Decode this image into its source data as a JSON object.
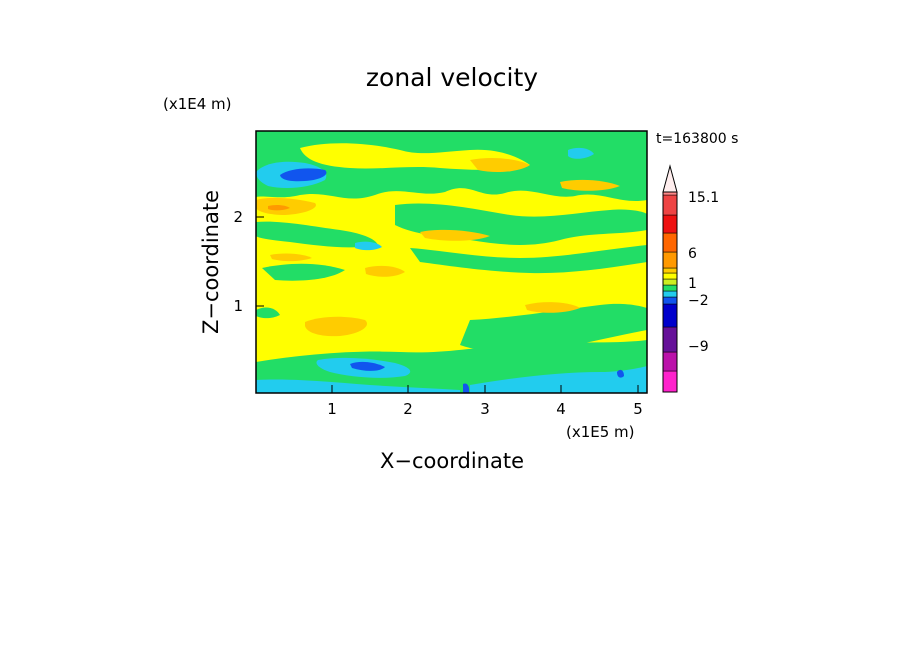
{
  "chart_data": {
    "type": "heatmap",
    "title": "zonal velocity",
    "time_label": "t=163800 s",
    "xlabel": "X−coordinate",
    "ylabel": "Z−coordinate",
    "x_scale_label": "(x1E5 m)",
    "y_scale_label": "(x1E4 m)",
    "xlim": [
      0,
      5.12
    ],
    "ylim": [
      0,
      2.95
    ],
    "x_ticks": [
      "1",
      "2",
      "3",
      "4",
      "5"
    ],
    "y_ticks": [
      "1",
      "2"
    ],
    "colorbar": {
      "labels": [
        "15.1",
        "6",
        "1",
        "−2",
        "−9"
      ],
      "colors": [
        "#ff22cc",
        "#bb11aa",
        "#661199",
        "#0000cc",
        "#1155ee",
        "#22ccee",
        "#22dd66",
        "#ccee22",
        "#ffff00",
        "#ffcc00",
        "#ff9900",
        "#ff6600",
        "#ee1111",
        "#ee4444",
        "#ff8888",
        "#ffbbbb"
      ]
    },
    "regions": [
      {
        "level": "green",
        "x0": 0.0,
        "x1": 5.12,
        "z0": 0.0,
        "z1": 0.45
      },
      {
        "level": "cyan",
        "x0": 2.9,
        "x1": 4.8,
        "z0": 0.05,
        "z1": 0.22
      },
      {
        "level": "cyan",
        "x0": 0.0,
        "x1": 2.4,
        "z0": 0.0,
        "z1": 0.1
      },
      {
        "level": "cyan",
        "x0": 0.8,
        "x1": 2.1,
        "z0": 0.2,
        "z1": 0.4
      },
      {
        "level": "blue",
        "x0": 1.3,
        "x1": 1.7,
        "z0": 0.23,
        "z1": 0.32
      },
      {
        "level": "green",
        "x0": 0.0,
        "x1": 5.12,
        "z0": 2.55,
        "z1": 2.95
      },
      {
        "level": "cyan",
        "x0": 0.0,
        "x1": 0.9,
        "z0": 2.3,
        "z1": 2.65
      },
      {
        "level": "blue",
        "x0": 0.25,
        "x1": 0.8,
        "z0": 2.4,
        "z1": 2.55
      },
      {
        "level": "orange",
        "x0": 0.0,
        "x1": 0.6,
        "z0": 2.05,
        "z1": 2.15
      },
      {
        "level": "orange",
        "x0": 0.6,
        "x1": 1.3,
        "z0": 0.55,
        "z1": 0.8
      },
      {
        "level": "green",
        "x0": 1.5,
        "x1": 4.9,
        "z0": 1.8,
        "z1": 2.3
      },
      {
        "level": "orange",
        "x0": 3.0,
        "x1": 3.8,
        "z0": 2.4,
        "z1": 2.55
      },
      {
        "level": "green",
        "x0": 3.8,
        "x1": 5.12,
        "z0": 0.6,
        "z1": 0.85
      }
    ]
  }
}
